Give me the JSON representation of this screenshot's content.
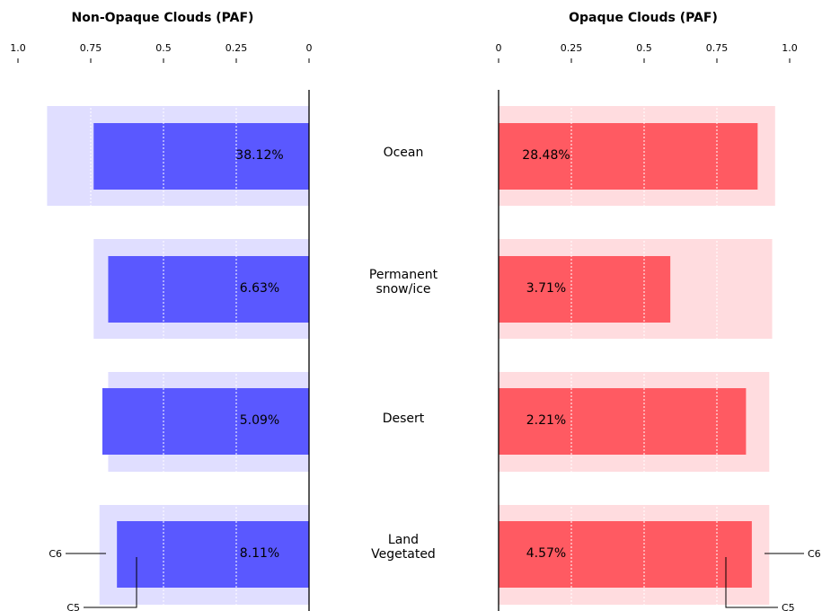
{
  "chart_data": {
    "type": "bar",
    "orientation": "horizontal-butterfly",
    "categories": [
      "Ocean",
      "Permanent\nsnow/ice",
      "Desert",
      "Land\nVegetated"
    ],
    "panels": [
      {
        "title": "Non-Opaque Clouds (PAF)",
        "direction": "left",
        "xlim": [
          0,
          1.0
        ],
        "ticks": [
          1.0,
          0.75,
          0.5,
          0.25,
          0
        ],
        "tick_labels": [
          "1.0",
          "0.75",
          "0.5",
          "0.25",
          "0"
        ],
        "series": [
          {
            "name": "C5",
            "values": [
              0.74,
              0.69,
              0.71,
              0.66
            ]
          },
          {
            "name": "C6",
            "values": [
              0.9,
              0.74,
              0.69,
              0.72
            ]
          }
        ],
        "labels": [
          "38.12%",
          "6.63%",
          "5.09%",
          "8.11%"
        ],
        "colors": {
          "C5": "#5a58ff",
          "C6": "#e0deff"
        }
      },
      {
        "title": "Opaque Clouds (PAF)",
        "direction": "right",
        "xlim": [
          0,
          1.0
        ],
        "ticks": [
          0,
          0.25,
          0.5,
          0.75,
          1.0
        ],
        "tick_labels": [
          "0",
          "0.25",
          "0.5",
          "0.75",
          "1.0"
        ],
        "series": [
          {
            "name": "C5",
            "values": [
              0.89,
              0.59,
              0.85,
              0.87
            ]
          },
          {
            "name": "C6",
            "values": [
              0.95,
              0.94,
              0.93,
              0.93
            ]
          }
        ],
        "labels": [
          "28.48%",
          "3.71%",
          "2.21%",
          "4.57%"
        ],
        "colors": {
          "C5": "#ff5a62",
          "C6": "#ffdcdf"
        }
      }
    ],
    "annotations": [
      "C6",
      "C5"
    ],
    "grid": true
  }
}
